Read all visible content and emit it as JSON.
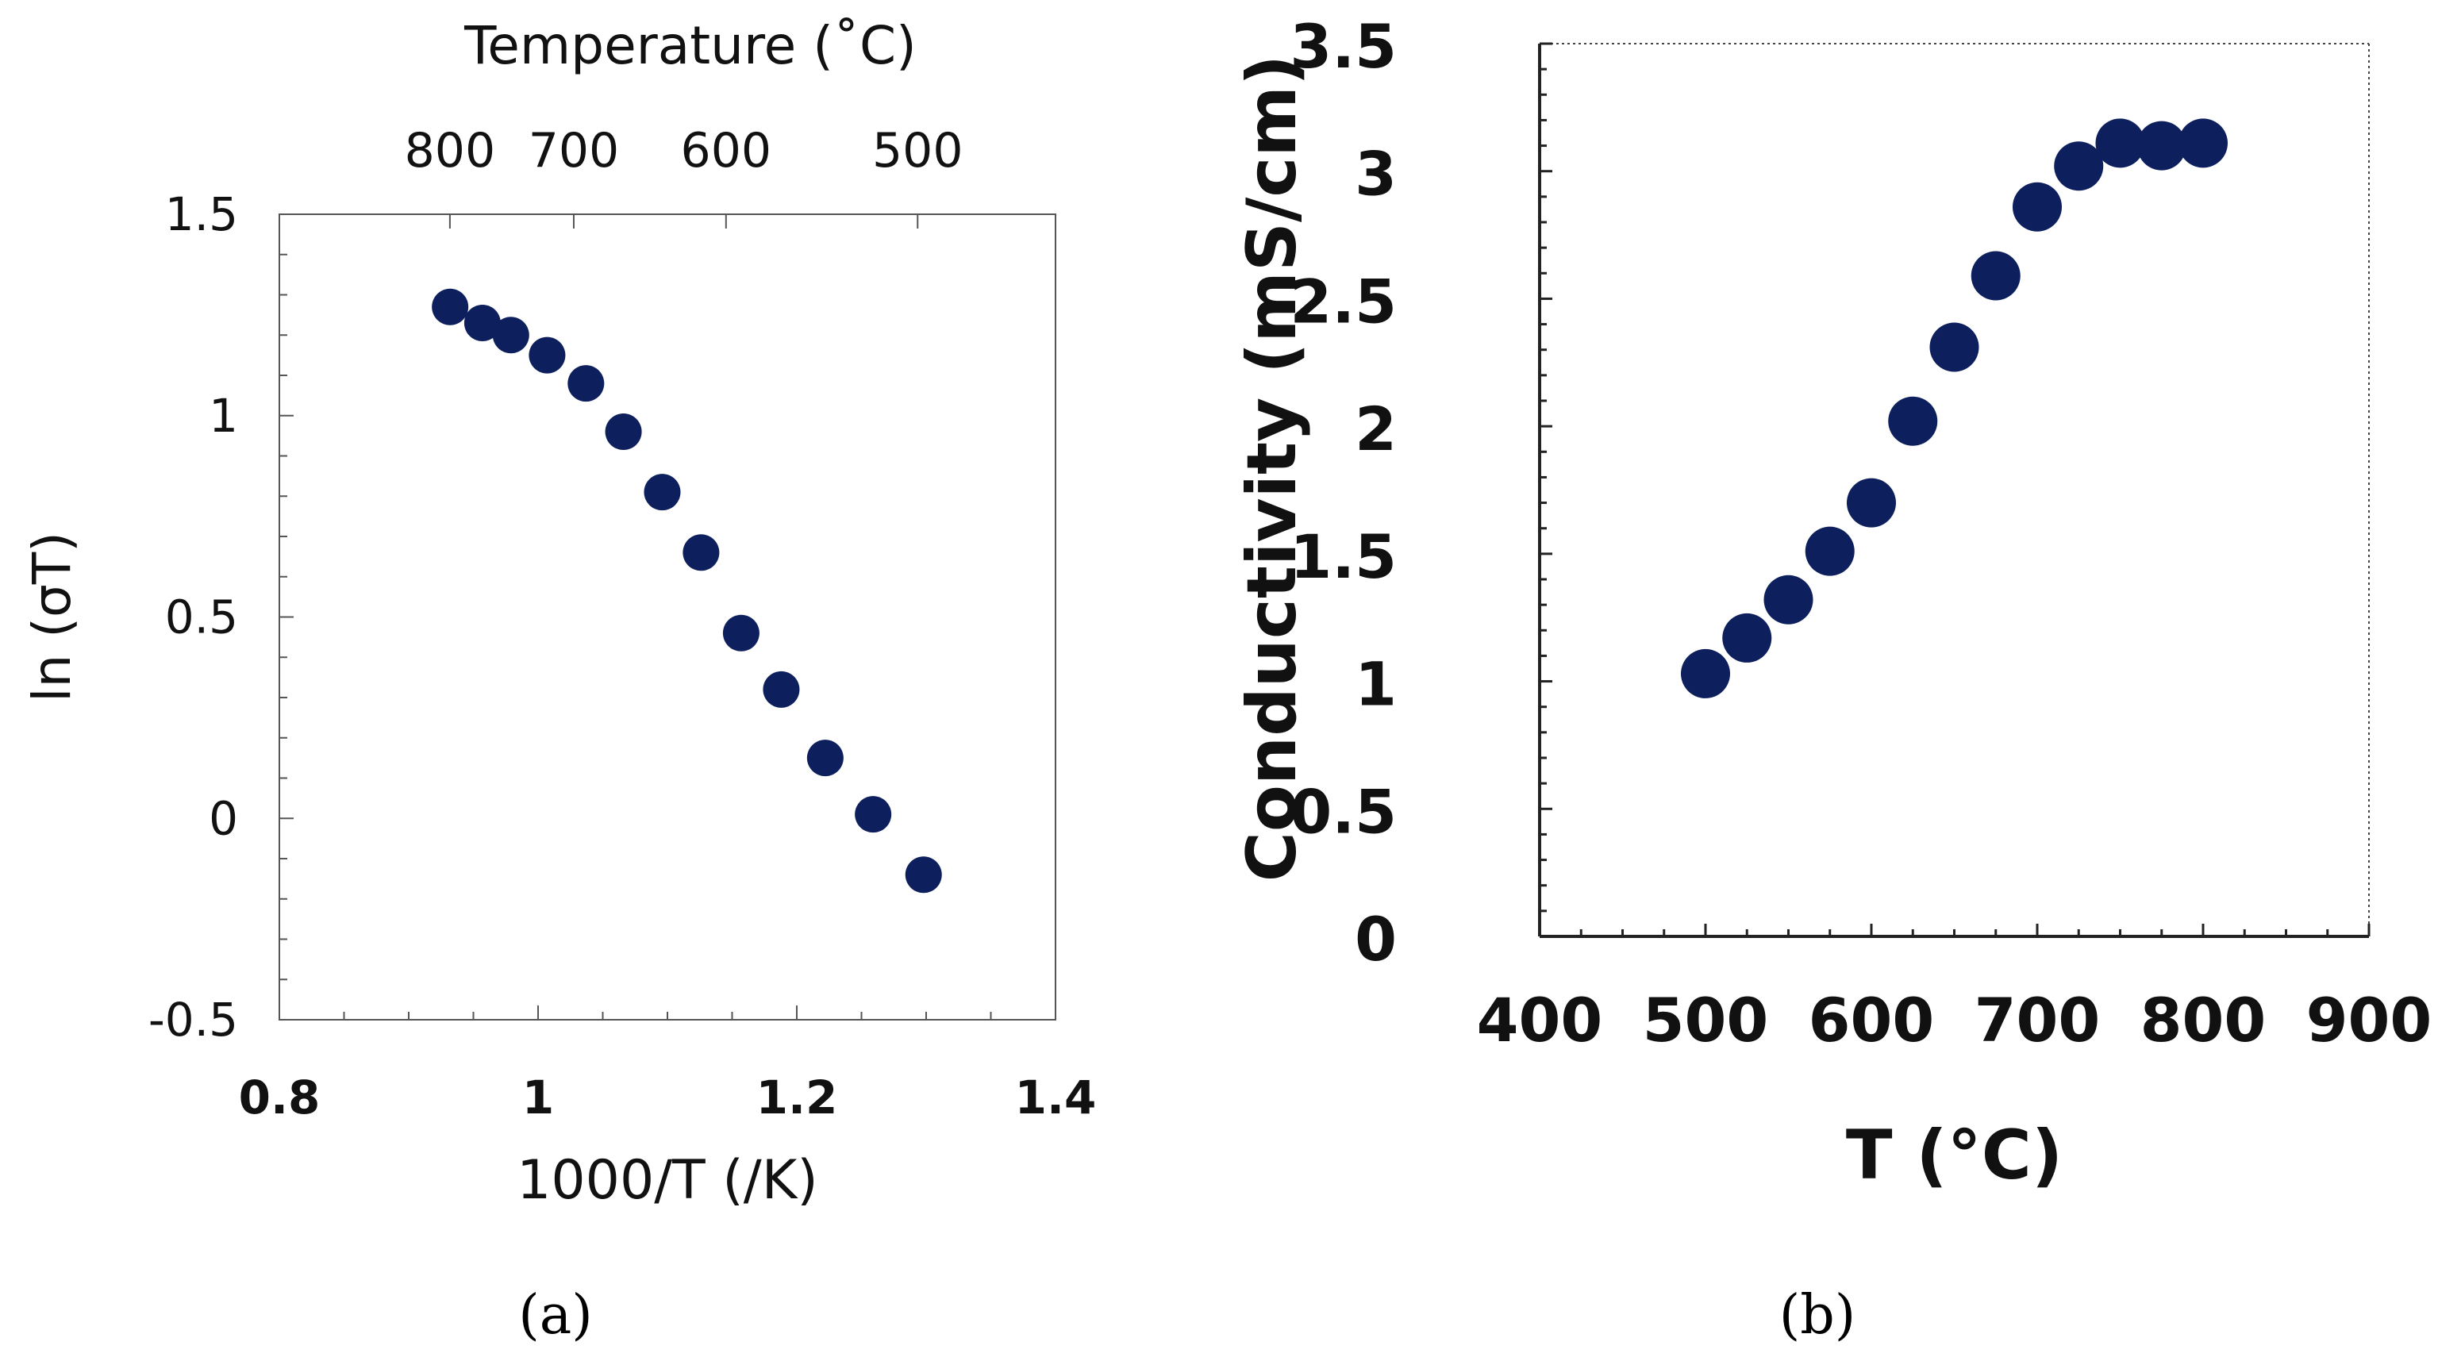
{
  "chart_data": [
    {
      "panel": "(a)",
      "type": "scatter",
      "title": "",
      "xlabel": "1000/T (/K)",
      "ylabel": "ln (σT)",
      "top_axis_label": "Temperature (˚C)",
      "xlim": [
        0.8,
        1.4
      ],
      "ylim": [
        -0.5,
        1.5
      ],
      "xticks": [
        "0.8",
        "1",
        "1.2",
        "1.4"
      ],
      "yticks": [
        "-0.5",
        "0",
        "0.5",
        "1",
        "1.5"
      ],
      "top_ticks": [
        "800",
        "700",
        "600",
        "500"
      ],
      "top_tick_temps_c": [
        800,
        700,
        600,
        500
      ],
      "marker_color": "#0d1f5c",
      "x": [
        0.932,
        0.957,
        0.979,
        1.007,
        1.037,
        1.066,
        1.096,
        1.126,
        1.157,
        1.188,
        1.222,
        1.259,
        1.298
      ],
      "y": [
        1.27,
        1.23,
        1.2,
        1.15,
        1.08,
        0.96,
        0.81,
        0.66,
        0.46,
        0.32,
        0.15,
        0.01,
        -0.14
      ]
    },
    {
      "panel": "(b)",
      "type": "scatter",
      "title": "",
      "xlabel": "T (°C)",
      "ylabel": "Conductivity (mS/cm)",
      "xlim": [
        400,
        900
      ],
      "ylim": [
        0,
        3.5
      ],
      "xticks": [
        "400",
        "500",
        "600",
        "700",
        "800",
        "900"
      ],
      "yticks": [
        "0",
        "0.5",
        "1",
        "1.5",
        "2",
        "2.5",
        "3",
        "3.5"
      ],
      "marker_color": "#0d1f5c",
      "x": [
        500,
        525,
        550,
        575,
        600,
        625,
        650,
        675,
        700,
        725,
        750,
        775,
        800
      ],
      "y": [
        1.03,
        1.17,
        1.32,
        1.51,
        1.7,
        2.02,
        2.31,
        2.59,
        2.86,
        3.02,
        3.11,
        3.1,
        3.11
      ]
    }
  ]
}
